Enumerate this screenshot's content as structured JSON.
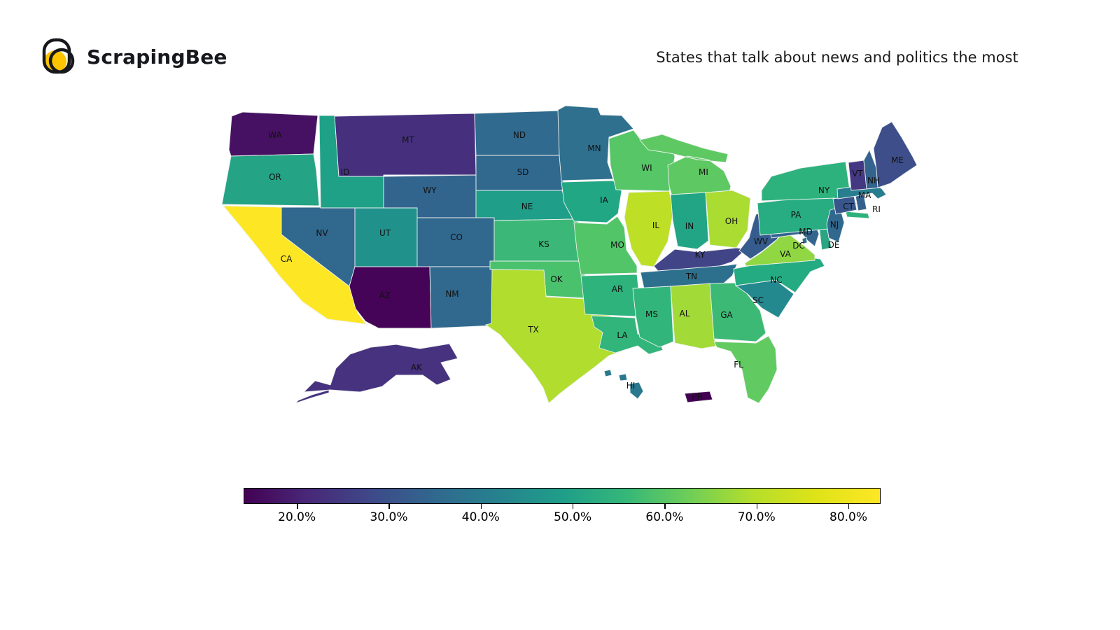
{
  "header": {
    "logo_text": "ScrapingBee",
    "logo_accent_color": "#fdc500",
    "title": "States that talk about news and politics the most"
  },
  "chart_data": {
    "type": "choropleth",
    "title": "States that talk about news and politics the most",
    "region": "United States (states, DC, Puerto Rico)",
    "colormap": "viridis",
    "value_unit": "percent",
    "colorbar": {
      "orientation": "horizontal",
      "domain_pct": [
        14.2,
        83.5
      ],
      "gradient_stops": [
        "#440154",
        "#482878",
        "#3e4989",
        "#31688e",
        "#26828e",
        "#1f9e89",
        "#35b779",
        "#6ece58",
        "#b5de2b",
        "#dfe318",
        "#fde725"
      ],
      "ticks": [
        {
          "value": 20,
          "label": "20.0%"
        },
        {
          "value": 30,
          "label": "30.0%"
        },
        {
          "value": 40,
          "label": "40.0%"
        },
        {
          "value": 50,
          "label": "50.0%"
        },
        {
          "value": 60,
          "label": "60.0%"
        },
        {
          "value": 70,
          "label": "70.0%"
        },
        {
          "value": 80,
          "label": "80.0%"
        }
      ]
    },
    "states": [
      {
        "abbr": "WA",
        "value_pct": 19,
        "color": "#471163"
      },
      {
        "abbr": "OR",
        "value_pct": 51,
        "color": "#24a385"
      },
      {
        "abbr": "CA",
        "value_pct": 84,
        "color": "#fde725"
      },
      {
        "abbr": "NV",
        "value_pct": 35,
        "color": "#31688e"
      },
      {
        "abbr": "ID",
        "value_pct": 50,
        "color": "#1fa187"
      },
      {
        "abbr": "MT",
        "value_pct": 23,
        "color": "#46307e"
      },
      {
        "abbr": "WY",
        "value_pct": 34,
        "color": "#32658e"
      },
      {
        "abbr": "UT",
        "value_pct": 46,
        "color": "#21918c"
      },
      {
        "abbr": "CO",
        "value_pct": 35,
        "color": "#31688e"
      },
      {
        "abbr": "AZ",
        "value_pct": 15,
        "color": "#450457"
      },
      {
        "abbr": "NM",
        "value_pct": 35,
        "color": "#31688e"
      },
      {
        "abbr": "ND",
        "value_pct": 36,
        "color": "#306a8e"
      },
      {
        "abbr": "SD",
        "value_pct": 35,
        "color": "#31688e"
      },
      {
        "abbr": "NE",
        "value_pct": 49,
        "color": "#1f9e89"
      },
      {
        "abbr": "KS",
        "value_pct": 57,
        "color": "#3bb878"
      },
      {
        "abbr": "OK",
        "value_pct": 59,
        "color": "#4ac16d"
      },
      {
        "abbr": "TX",
        "value_pct": 72,
        "color": "#b0dd2e"
      },
      {
        "abbr": "MN",
        "value_pct": 37,
        "color": "#2e708e"
      },
      {
        "abbr": "IA",
        "value_pct": 52,
        "color": "#22a785"
      },
      {
        "abbr": "MO",
        "value_pct": 61,
        "color": "#52c569"
      },
      {
        "abbr": "AR",
        "value_pct": 55,
        "color": "#2eb37c"
      },
      {
        "abbr": "LA",
        "value_pct": 56,
        "color": "#32b57b"
      },
      {
        "abbr": "WI",
        "value_pct": 61,
        "color": "#56c667"
      },
      {
        "abbr": "IL",
        "value_pct": 74,
        "color": "#bddf26"
      },
      {
        "abbr": "MI",
        "value_pct": 62,
        "color": "#5ec962"
      },
      {
        "abbr": "IN",
        "value_pct": 51,
        "color": "#21a585"
      },
      {
        "abbr": "OH",
        "value_pct": 71,
        "color": "#abdc32"
      },
      {
        "abbr": "KY",
        "value_pct": 27,
        "color": "#414487"
      },
      {
        "abbr": "TN",
        "value_pct": 37,
        "color": "#2d708e"
      },
      {
        "abbr": "MS",
        "value_pct": 56,
        "color": "#32b57b"
      },
      {
        "abbr": "AL",
        "value_pct": 70,
        "color": "#a2da37"
      },
      {
        "abbr": "GA",
        "value_pct": 57,
        "color": "#3db976"
      },
      {
        "abbr": "FL",
        "value_pct": 62,
        "color": "#61ca60"
      },
      {
        "abbr": "SC",
        "value_pct": 44,
        "color": "#23898e"
      },
      {
        "abbr": "NC",
        "value_pct": 54,
        "color": "#25ab82"
      },
      {
        "abbr": "VA",
        "value_pct": 68,
        "color": "#90d743"
      },
      {
        "abbr": "WV",
        "value_pct": 32,
        "color": "#365c8d"
      },
      {
        "abbr": "MD",
        "value_pct": 34,
        "color": "#33658e"
      },
      {
        "abbr": "DE",
        "value_pct": 52,
        "color": "#2aa584"
      },
      {
        "abbr": "DC",
        "value_pct": 37,
        "color": "#2d708e"
      },
      {
        "abbr": "PA",
        "value_pct": 54,
        "color": "#27ad81"
      },
      {
        "abbr": "NJ",
        "value_pct": 35,
        "color": "#31688e"
      },
      {
        "abbr": "NY",
        "value_pct": 55,
        "color": "#2db27d"
      },
      {
        "abbr": "CT",
        "value_pct": 31,
        "color": "#38568c"
      },
      {
        "abbr": "RI",
        "value_pct": 33,
        "color": "#35608d"
      },
      {
        "abbr": "MA",
        "value_pct": 40,
        "color": "#287d8e"
      },
      {
        "abbr": "VT",
        "value_pct": 25,
        "color": "#453882"
      },
      {
        "abbr": "NH",
        "value_pct": 34,
        "color": "#34638d"
      },
      {
        "abbr": "ME",
        "value_pct": 30,
        "color": "#3d4e8a"
      },
      {
        "abbr": "AK",
        "value_pct": 23,
        "color": "#46327e"
      },
      {
        "abbr": "HI",
        "value_pct": 39,
        "color": "#2a788e"
      },
      {
        "abbr": "PR",
        "value_pct": 14,
        "color": "#440154"
      }
    ]
  }
}
